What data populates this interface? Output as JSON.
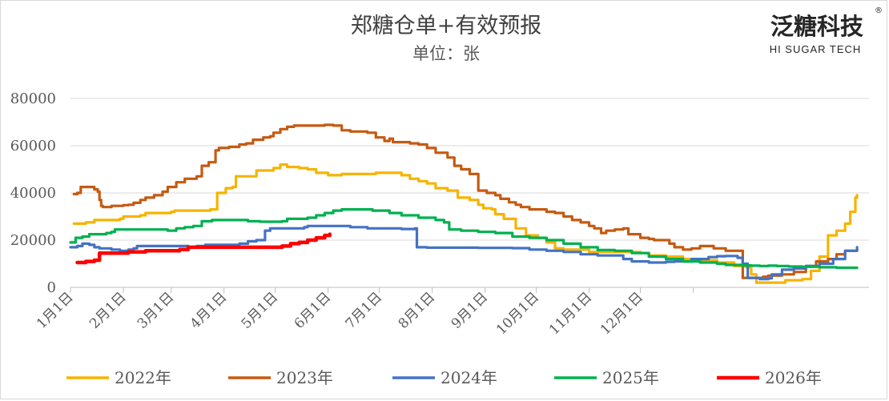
{
  "header": {
    "title": "郑糖仓单+有效预报",
    "subtitle": "单位：张",
    "brand_cn": "泛糖科技",
    "brand_en": "HI SUGAR TECH",
    "brand_mark": "®"
  },
  "chart_data": {
    "type": "line",
    "title": "郑糖仓单+有效预报",
    "subtitle": "单位：张",
    "xlabel": "",
    "ylabel": "",
    "ylim": [
      0,
      80000
    ],
    "yticks": [
      "0",
      "20000",
      "40000",
      "60000",
      "80000"
    ],
    "xticks": [
      "1月1日",
      "2月1日",
      "3月1日",
      "4月1日",
      "5月1日",
      "6月1日",
      "7月1日",
      "8月1日",
      "9月1日",
      "10月1日",
      "11月1日",
      "12月1日"
    ],
    "x_unit": "day of year (1 = Jan 1)",
    "grid": true,
    "legend_position": "bottom",
    "series": [
      {
        "name": "2022年",
        "color": "#f5b400",
        "points": [
          [
            3,
            27000
          ],
          [
            10,
            27500
          ],
          [
            15,
            28500
          ],
          [
            30,
            29000
          ],
          [
            32,
            30000
          ],
          [
            42,
            30500
          ],
          [
            45,
            31500
          ],
          [
            60,
            32000
          ],
          [
            62,
            32500
          ],
          [
            80,
            32500
          ],
          [
            83,
            33000
          ],
          [
            87,
            40000
          ],
          [
            92,
            42000
          ],
          [
            96,
            42500
          ],
          [
            98,
            47000
          ],
          [
            108,
            47000
          ],
          [
            110,
            49500
          ],
          [
            120,
            50500
          ],
          [
            124,
            52000
          ],
          [
            128,
            51000
          ],
          [
            135,
            50500
          ],
          [
            140,
            50000
          ],
          [
            145,
            48500
          ],
          [
            152,
            47500
          ],
          [
            160,
            48000
          ],
          [
            175,
            48000
          ],
          [
            180,
            48500
          ],
          [
            195,
            47500
          ],
          [
            200,
            46000
          ],
          [
            205,
            45000
          ],
          [
            210,
            44000
          ],
          [
            215,
            42000
          ],
          [
            222,
            41000
          ],
          [
            228,
            38000
          ],
          [
            235,
            37000
          ],
          [
            240,
            35000
          ],
          [
            243,
            33500
          ],
          [
            248,
            33000
          ],
          [
            250,
            31000
          ],
          [
            255,
            29000
          ],
          [
            262,
            25000
          ],
          [
            268,
            22000
          ],
          [
            275,
            21000
          ],
          [
            280,
            19000
          ],
          [
            285,
            16500
          ],
          [
            290,
            16000
          ],
          [
            305,
            15000
          ],
          [
            335,
            14500
          ],
          [
            340,
            13500
          ],
          [
            350,
            13000
          ],
          [
            360,
            12000
          ],
          [
            370,
            11500
          ],
          [
            380,
            10500
          ],
          [
            390,
            9000
          ],
          [
            397,
            8500
          ],
          [
            400,
            5500
          ],
          [
            403,
            2000
          ],
          [
            410,
            2000
          ],
          [
            420,
            3000
          ],
          [
            430,
            3500
          ],
          [
            435,
            7000
          ],
          [
            440,
            13000
          ],
          [
            445,
            22000
          ],
          [
            450,
            24000
          ],
          [
            455,
            27000
          ],
          [
            458,
            32000
          ],
          [
            461,
            38000
          ],
          [
            462,
            39000
          ]
        ]
      },
      {
        "name": "2023年",
        "color": "#c55a11",
        "points": [
          [
            3,
            39500
          ],
          [
            5,
            40000
          ],
          [
            7,
            42500
          ],
          [
            12,
            42500
          ],
          [
            15,
            41500
          ],
          [
            17,
            40500
          ],
          [
            18,
            37000
          ],
          [
            19,
            34500
          ],
          [
            20,
            34000
          ],
          [
            25,
            34500
          ],
          [
            32,
            34800
          ],
          [
            35,
            35000
          ],
          [
            38,
            35800
          ],
          [
            42,
            37000
          ],
          [
            45,
            38000
          ],
          [
            50,
            39000
          ],
          [
            55,
            40500
          ],
          [
            58,
            42500
          ],
          [
            63,
            44500
          ],
          [
            68,
            46000
          ],
          [
            75,
            47000
          ],
          [
            78,
            51500
          ],
          [
            82,
            53000
          ],
          [
            86,
            58000
          ],
          [
            88,
            59000
          ],
          [
            94,
            59500
          ],
          [
            100,
            60500
          ],
          [
            104,
            61000
          ],
          [
            108,
            62500
          ],
          [
            114,
            63500
          ],
          [
            118,
            64000
          ],
          [
            120,
            65500
          ],
          [
            124,
            67000
          ],
          [
            128,
            68000
          ],
          [
            132,
            68500
          ],
          [
            145,
            68500
          ],
          [
            150,
            68800
          ],
          [
            155,
            68500
          ],
          [
            160,
            66500
          ],
          [
            165,
            66000
          ],
          [
            175,
            65500
          ],
          [
            180,
            63500
          ],
          [
            185,
            62000
          ],
          [
            188,
            63000
          ],
          [
            190,
            61500
          ],
          [
            200,
            61000
          ],
          [
            205,
            60500
          ],
          [
            210,
            59000
          ],
          [
            215,
            57000
          ],
          [
            222,
            55000
          ],
          [
            226,
            51500
          ],
          [
            230,
            50000
          ],
          [
            235,
            48000
          ],
          [
            240,
            41000
          ],
          [
            245,
            40000
          ],
          [
            250,
            39000
          ],
          [
            253,
            37500
          ],
          [
            258,
            36000
          ],
          [
            262,
            35000
          ],
          [
            265,
            34000
          ],
          [
            270,
            33000
          ],
          [
            280,
            32000
          ],
          [
            285,
            31500
          ],
          [
            290,
            30000
          ],
          [
            295,
            28500
          ],
          [
            300,
            27500
          ],
          [
            305,
            26000
          ],
          [
            308,
            25000
          ],
          [
            312,
            23000
          ],
          [
            315,
            24000
          ],
          [
            320,
            24500
          ],
          [
            325,
            25000
          ],
          [
            328,
            22500
          ],
          [
            335,
            21000
          ],
          [
            340,
            20500
          ],
          [
            343,
            20000
          ],
          [
            350,
            20000
          ],
          [
            352,
            18500
          ],
          [
            355,
            17000
          ],
          [
            360,
            16000
          ],
          [
            365,
            16500
          ],
          [
            370,
            17500
          ],
          [
            378,
            16500
          ],
          [
            385,
            15500
          ],
          [
            393,
            15500
          ],
          [
            395,
            4000
          ],
          [
            400,
            4000
          ],
          [
            407,
            4500
          ],
          [
            410,
            5000
          ],
          [
            418,
            5500
          ],
          [
            425,
            6500
          ],
          [
            432,
            9000
          ],
          [
            438,
            11000
          ],
          [
            445,
            12000
          ],
          [
            450,
            14000
          ],
          [
            455,
            15500
          ],
          [
            462,
            16000
          ]
        ]
      },
      {
        "name": "2024年",
        "color": "#4472c4",
        "points": [
          [
            1,
            17000
          ],
          [
            5,
            17500
          ],
          [
            8,
            18500
          ],
          [
            12,
            18000
          ],
          [
            15,
            17000
          ],
          [
            18,
            16500
          ],
          [
            25,
            16000
          ],
          [
            30,
            15500
          ],
          [
            35,
            16000
          ],
          [
            38,
            16500
          ],
          [
            40,
            17500
          ],
          [
            50,
            17500
          ],
          [
            65,
            17500
          ],
          [
            70,
            17000
          ],
          [
            75,
            17500
          ],
          [
            80,
            18000
          ],
          [
            95,
            18000
          ],
          [
            100,
            18500
          ],
          [
            105,
            19500
          ],
          [
            110,
            20000
          ],
          [
            115,
            24000
          ],
          [
            118,
            25000
          ],
          [
            130,
            25000
          ],
          [
            138,
            25500
          ],
          [
            140,
            26000
          ],
          [
            155,
            26000
          ],
          [
            165,
            25500
          ],
          [
            175,
            25000
          ],
          [
            195,
            24700
          ],
          [
            203,
            25000
          ],
          [
            204,
            17000
          ],
          [
            210,
            16800
          ],
          [
            225,
            16800
          ],
          [
            240,
            16700
          ],
          [
            260,
            16600
          ],
          [
            270,
            16000
          ],
          [
            280,
            15500
          ],
          [
            290,
            15000
          ],
          [
            300,
            14000
          ],
          [
            310,
            13500
          ],
          [
            325,
            12000
          ],
          [
            330,
            11000
          ],
          [
            340,
            10500
          ],
          [
            350,
            10800
          ],
          [
            355,
            11000
          ],
          [
            365,
            12000
          ],
          [
            375,
            12800
          ],
          [
            380,
            13200
          ],
          [
            385,
            13300
          ],
          [
            392,
            12500
          ],
          [
            395,
            10000
          ],
          [
            398,
            4000
          ],
          [
            405,
            3500
          ],
          [
            410,
            3800
          ],
          [
            412,
            5500
          ],
          [
            418,
            7500
          ],
          [
            425,
            8000
          ],
          [
            432,
            9000
          ],
          [
            440,
            10000
          ],
          [
            448,
            12000
          ],
          [
            455,
            15500
          ],
          [
            462,
            17000
          ]
        ]
      },
      {
        "name": "2025年",
        "color": "#00b050",
        "points": [
          [
            1,
            19000
          ],
          [
            4,
            21000
          ],
          [
            8,
            21500
          ],
          [
            12,
            22500
          ],
          [
            17,
            22500
          ],
          [
            22,
            23000
          ],
          [
            25,
            23500
          ],
          [
            27,
            24500
          ],
          [
            35,
            24500
          ],
          [
            45,
            24500
          ],
          [
            52,
            24500
          ],
          [
            58,
            24000
          ],
          [
            63,
            25000
          ],
          [
            68,
            25500
          ],
          [
            73,
            26000
          ],
          [
            78,
            28000
          ],
          [
            84,
            28500
          ],
          [
            90,
            28500
          ],
          [
            105,
            28000
          ],
          [
            112,
            27800
          ],
          [
            125,
            28000
          ],
          [
            128,
            29000
          ],
          [
            140,
            29500
          ],
          [
            145,
            30500
          ],
          [
            150,
            31500
          ],
          [
            155,
            32500
          ],
          [
            160,
            33000
          ],
          [
            170,
            33000
          ],
          [
            178,
            32500
          ],
          [
            188,
            31500
          ],
          [
            195,
            30500
          ],
          [
            205,
            29500
          ],
          [
            215,
            28500
          ],
          [
            220,
            27500
          ],
          [
            223,
            24500
          ],
          [
            230,
            24000
          ],
          [
            240,
            23500
          ],
          [
            250,
            23000
          ],
          [
            260,
            21500
          ],
          [
            270,
            21000
          ],
          [
            280,
            20000
          ],
          [
            290,
            18500
          ],
          [
            300,
            17000
          ],
          [
            310,
            15800
          ],
          [
            320,
            15500
          ],
          [
            330,
            14500
          ],
          [
            340,
            13000
          ],
          [
            350,
            12000
          ],
          [
            360,
            11000
          ],
          [
            370,
            10500
          ],
          [
            380,
            10000
          ],
          [
            385,
            9500
          ],
          [
            395,
            9300
          ],
          [
            400,
            9200
          ],
          [
            405,
            9000
          ],
          [
            410,
            9200
          ],
          [
            415,
            9000
          ],
          [
            422,
            8800
          ],
          [
            430,
            8700
          ],
          [
            440,
            8500
          ],
          [
            450,
            8300
          ],
          [
            455,
            8300
          ],
          [
            460,
            8300
          ],
          [
            462,
            8300
          ]
        ]
      },
      {
        "name": "2026年",
        "color": "#ff0000",
        "points": [
          [
            5,
            10500
          ],
          [
            10,
            11000
          ],
          [
            15,
            11500
          ],
          [
            18,
            14500
          ],
          [
            22,
            14500
          ],
          [
            28,
            14500
          ],
          [
            35,
            15000
          ],
          [
            45,
            15500
          ],
          [
            55,
            15500
          ],
          [
            65,
            16000
          ],
          [
            70,
            17000
          ],
          [
            80,
            17000
          ],
          [
            90,
            17000
          ],
          [
            100,
            17000
          ],
          [
            110,
            17000
          ],
          [
            125,
            17500
          ],
          [
            130,
            18500
          ],
          [
            135,
            19000
          ],
          [
            140,
            20000
          ],
          [
            145,
            21000
          ],
          [
            150,
            22000
          ],
          [
            153,
            22500
          ]
        ]
      }
    ]
  }
}
